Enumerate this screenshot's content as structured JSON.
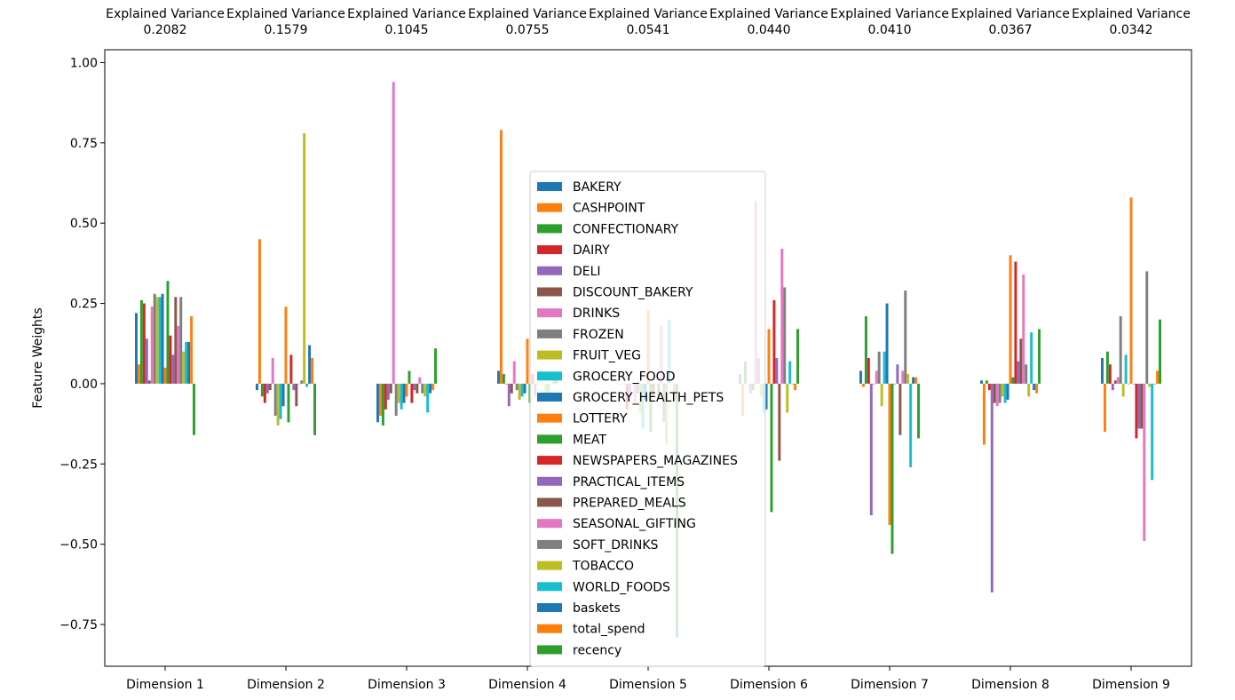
{
  "chart_data": {
    "type": "bar",
    "ylabel": "Feature Weights",
    "xlabel": "",
    "ylim": [
      -0.88,
      1.04
    ],
    "yticks": [
      -0.75,
      -0.5,
      -0.25,
      0.0,
      0.25,
      0.5,
      0.75,
      1.0
    ],
    "ytick_labels": [
      "−0.75",
      "−0.50",
      "−0.25",
      "0.00",
      "0.25",
      "0.50",
      "0.75",
      "1.00"
    ],
    "grid": false,
    "legend_position": "center",
    "categories": [
      "Dimension 1",
      "Dimension 2",
      "Dimension 3",
      "Dimension 4",
      "Dimension 5",
      "Dimension 6",
      "Dimension 7",
      "Dimension 8",
      "Dimension 9"
    ],
    "top_title_prefix": "Explained Variance",
    "explained_variance": [
      "0.2082",
      "0.1579",
      "0.1045",
      "0.0755",
      "0.0541",
      "0.0440",
      "0.0410",
      "0.0367",
      "0.0342"
    ],
    "series": [
      {
        "name": "BAKERY",
        "color": "#1f77b4",
        "values": [
          0.22,
          -0.02,
          -0.12,
          0.04,
          0.0,
          0.03,
          0.04,
          0.01,
          0.08
        ]
      },
      {
        "name": "CASHPOINT",
        "color": "#ff7f0e",
        "values": [
          0.06,
          0.45,
          -0.1,
          0.79,
          0.0,
          -0.1,
          -0.01,
          -0.19,
          -0.15
        ]
      },
      {
        "name": "CONFECTIONARY",
        "color": "#2ca02c",
        "values": [
          0.26,
          -0.04,
          -0.13,
          0.03,
          0.0,
          0.07,
          0.21,
          0.01,
          0.1
        ]
      },
      {
        "name": "DAIRY",
        "color": "#d62728",
        "values": [
          0.25,
          -0.06,
          -0.08,
          0.0,
          -0.08,
          0.0,
          0.08,
          -0.02,
          0.06
        ]
      },
      {
        "name": "DELI",
        "color": "#9467bd",
        "values": [
          0.14,
          -0.03,
          -0.05,
          -0.07,
          -0.04,
          -0.03,
          -0.41,
          -0.65,
          -0.02
        ]
      },
      {
        "name": "DISCOUNT_BAKERY",
        "color": "#8c564b",
        "values": [
          0.01,
          -0.02,
          -0.03,
          -0.03,
          0.0,
          -0.02,
          0.0,
          -0.06,
          0.01
        ]
      },
      {
        "name": "DRINKS",
        "color": "#e377c2",
        "values": [
          0.24,
          0.08,
          0.94,
          0.07,
          -0.06,
          0.57,
          0.04,
          -0.07,
          0.02
        ]
      },
      {
        "name": "FROZEN",
        "color": "#7f7f7f",
        "values": [
          0.28,
          -0.1,
          -0.1,
          -0.02,
          -0.03,
          0.08,
          0.1,
          -0.06,
          0.21
        ]
      },
      {
        "name": "FRUIT_VEG",
        "color": "#bcbd22",
        "values": [
          0.27,
          -0.13,
          -0.06,
          -0.05,
          -0.09,
          -0.04,
          -0.07,
          -0.04,
          -0.04
        ]
      },
      {
        "name": "GROCERY_FOOD",
        "color": "#17becf",
        "values": [
          0.27,
          -0.11,
          -0.08,
          -0.04,
          -0.14,
          -0.09,
          0.1,
          -0.06,
          0.09
        ]
      },
      {
        "name": "GROCERY_HEALTH_PETS",
        "color": "#1f77b4",
        "values": [
          0.28,
          -0.07,
          -0.06,
          -0.03,
          -0.05,
          -0.08,
          0.25,
          -0.05,
          0.0
        ]
      },
      {
        "name": "LOTTERY",
        "color": "#ff7f0e",
        "values": [
          0.05,
          0.24,
          -0.04,
          0.14,
          0.23,
          0.17,
          -0.44,
          0.4,
          0.58
        ]
      },
      {
        "name": "MEAT",
        "color": "#2ca02c",
        "values": [
          0.32,
          -0.12,
          0.04,
          -0.06,
          -0.15,
          -0.4,
          -0.53,
          0.02,
          0.0
        ]
      },
      {
        "name": "NEWSPAPERS_MAGAZINES",
        "color": "#d62728",
        "values": [
          0.15,
          0.09,
          -0.06,
          0.03,
          -0.04,
          0.26,
          0.0,
          0.38,
          -0.17
        ]
      },
      {
        "name": "PRACTICAL_ITEMS",
        "color": "#9467bd",
        "values": [
          0.09,
          -0.02,
          -0.02,
          -0.04,
          0.0,
          0.08,
          0.06,
          0.07,
          -0.14
        ]
      },
      {
        "name": "PREPARED_MEALS",
        "color": "#8c564b",
        "values": [
          0.27,
          -0.07,
          -0.03,
          0.0,
          -0.05,
          -0.24,
          -0.16,
          0.14,
          -0.14
        ]
      },
      {
        "name": "SEASONAL_GIFTING",
        "color": "#e377c2",
        "values": [
          0.18,
          0.0,
          0.02,
          0.0,
          0.18,
          0.42,
          0.04,
          0.34,
          -0.49
        ]
      },
      {
        "name": "SOFT_DRINKS",
        "color": "#7f7f7f",
        "values": [
          0.27,
          0.01,
          -0.03,
          0.0,
          -0.12,
          0.3,
          0.29,
          0.06,
          0.35
        ]
      },
      {
        "name": "TOBACCO",
        "color": "#bcbd22",
        "values": [
          0.1,
          0.78,
          -0.04,
          -0.05,
          -0.19,
          -0.09,
          0.03,
          -0.04,
          -0.01
        ]
      },
      {
        "name": "WORLD_FOODS",
        "color": "#17becf",
        "values": [
          0.13,
          -0.01,
          -0.09,
          -0.05,
          0.2,
          0.07,
          -0.26,
          0.16,
          -0.3
        ]
      },
      {
        "name": "baskets",
        "color": "#1f77b4",
        "values": [
          0.13,
          0.12,
          -0.03,
          0.0,
          0.0,
          0.0,
          0.02,
          -0.02,
          0.0
        ]
      },
      {
        "name": "total_spend",
        "color": "#ff7f0e",
        "values": [
          0.21,
          0.08,
          -0.02,
          0.02,
          -0.05,
          -0.02,
          0.02,
          -0.03,
          0.04
        ]
      },
      {
        "name": "recency",
        "color": "#2ca02c",
        "values": [
          -0.16,
          -0.16,
          0.11,
          0.02,
          -0.79,
          0.17,
          -0.17,
          0.17,
          0.2
        ]
      }
    ]
  }
}
